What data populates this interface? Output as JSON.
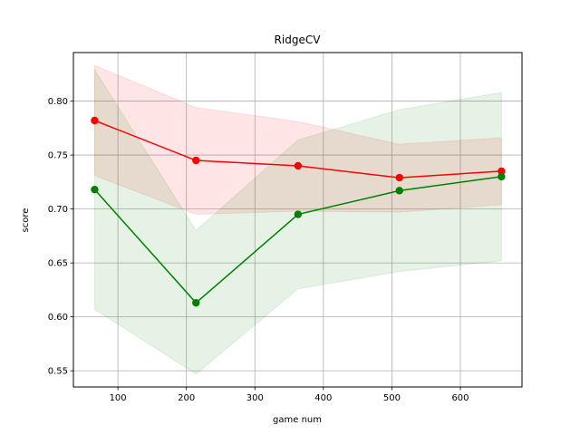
{
  "chart_data": {
    "type": "line",
    "title": "RidgeCV",
    "xlabel": "game num",
    "ylabel": "score",
    "xlim": [
      35,
      690
    ],
    "ylim": [
      0.535,
      0.845
    ],
    "xticks": [
      100,
      200,
      300,
      400,
      500,
      600
    ],
    "yticks": [
      0.55,
      0.6,
      0.65,
      0.7,
      0.75,
      0.8
    ],
    "ytick_labels": [
      "0.55",
      "0.60",
      "0.65",
      "0.70",
      "0.75",
      "0.80"
    ],
    "grid": true,
    "x": [
      66,
      214,
      363,
      511,
      660
    ],
    "series": [
      {
        "color": "#ff0000",
        "values": [
          0.782,
          0.745,
          0.74,
          0.729,
          0.735
        ],
        "band_upper": [
          0.833,
          0.794,
          0.781,
          0.76,
          0.766
        ],
        "band_lower": [
          0.731,
          0.695,
          0.698,
          0.697,
          0.704
        ],
        "band_color": "#ff0000"
      },
      {
        "color": "#008000",
        "values": [
          0.718,
          0.613,
          0.695,
          0.717,
          0.73
        ],
        "band_upper": [
          0.829,
          0.68,
          0.764,
          0.792,
          0.808
        ],
        "band_lower": [
          0.607,
          0.547,
          0.626,
          0.642,
          0.652
        ],
        "band_color": "#008000"
      }
    ]
  }
}
